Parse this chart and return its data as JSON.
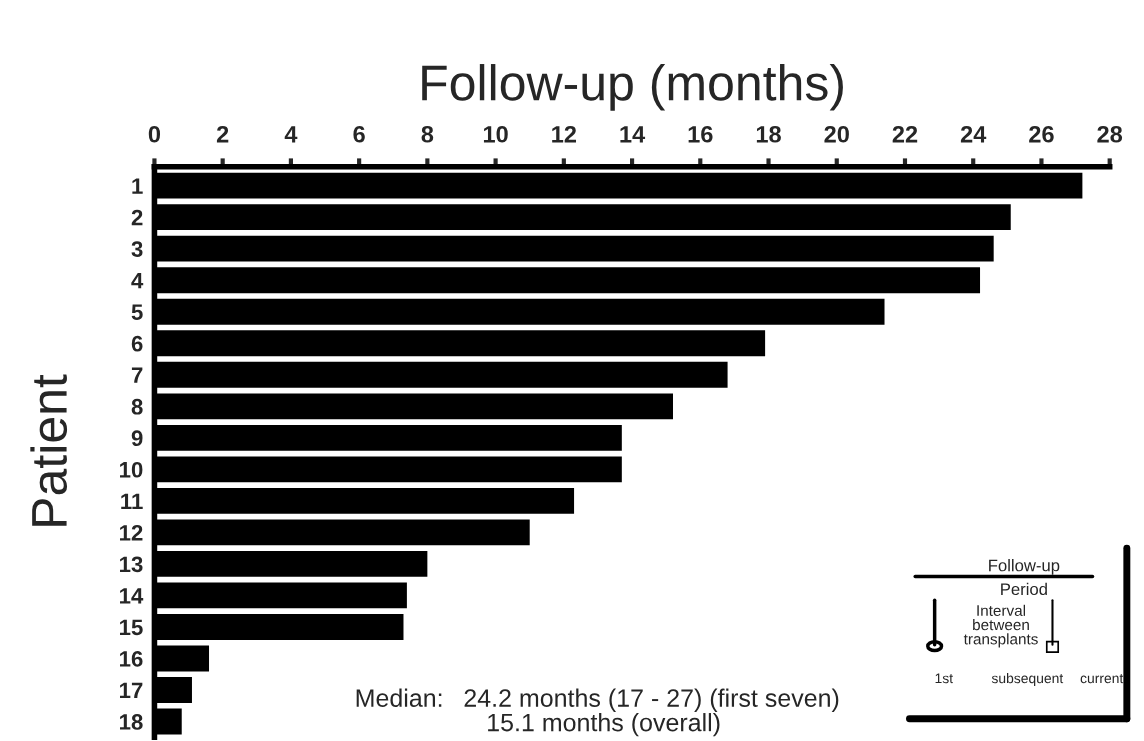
{
  "chart_data": {
    "type": "bar",
    "orientation": "horizontal",
    "xlabel": "Follow-up (months)",
    "ylabel": "Patient",
    "categories": [
      "1",
      "2",
      "3",
      "4",
      "5",
      "6",
      "7",
      "8",
      "9",
      "10",
      "11",
      "12",
      "13",
      "14",
      "15",
      "16",
      "17",
      "18"
    ],
    "values": [
      27.2,
      25.1,
      24.6,
      24.2,
      21.4,
      17.9,
      16.8,
      15.2,
      13.7,
      13.7,
      12.3,
      11.0,
      8.0,
      7.4,
      7.3,
      1.6,
      1.1,
      0.8
    ],
    "color": "#000000",
    "xlim": [
      0,
      28
    ],
    "xticks": [
      0,
      2,
      4,
      6,
      8,
      10,
      12,
      14,
      16,
      18,
      20,
      22,
      24,
      26,
      28
    ],
    "grid": false,
    "legend": false,
    "annotations": [
      "Median:",
      "24.2 months (17 - 27) (first seven)",
      "15.1 months (overall)",
      "Follow-up",
      "Period",
      "Interval\nbetween\ntransplants",
      "1st",
      "subsequent",
      "current"
    ]
  }
}
